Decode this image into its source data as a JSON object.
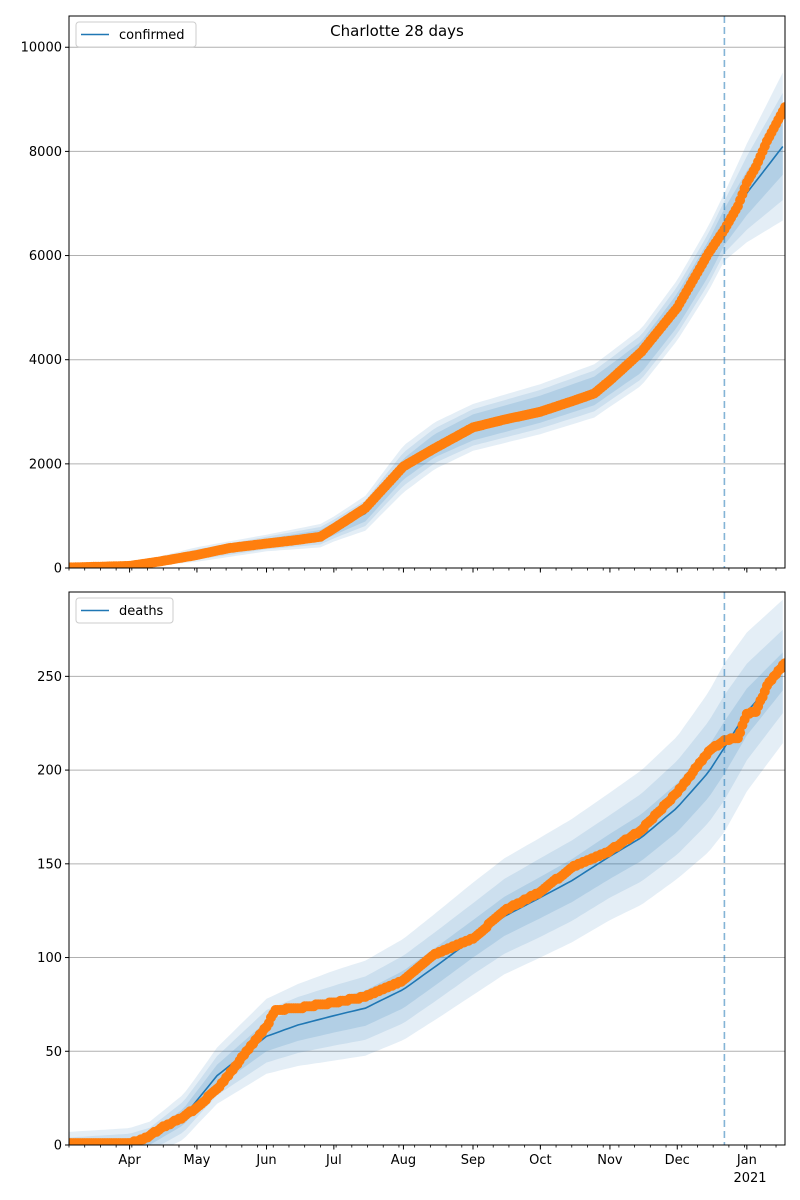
{
  "figure": {
    "title": "Charlotte 28 days"
  },
  "x_axis": {
    "month_ticks": [
      "Apr",
      "May",
      "Jun",
      "Jul",
      "Aug",
      "Sep",
      "Oct",
      "Nov",
      "Dec",
      "Jan"
    ],
    "year_label": "2021"
  },
  "chart_data": [
    {
      "type": "line",
      "legend": {
        "label": "confirmed",
        "placement": "upper-left"
      },
      "grid": "horizontal",
      "xlim": [
        "2020-03-05",
        "2021-01-18"
      ],
      "ylim": [
        0,
        10600
      ],
      "yticks": [
        0,
        2000,
        4000,
        6000,
        8000,
        10000
      ],
      "forecast_start": "2020-12-22",
      "colors": {
        "model": "#1f77b4",
        "observed": "#ff7f0e",
        "band": "#1f77b4",
        "forecast_line": "#1f77b4"
      },
      "model_line": {
        "x": [
          "2020-03-05",
          "2020-04-01",
          "2020-05-01",
          "2020-06-01",
          "2020-06-25",
          "2020-07-15",
          "2020-08-01",
          "2020-08-15",
          "2020-09-01",
          "2020-10-01",
          "2020-10-25",
          "2020-11-15",
          "2020-12-01",
          "2020-12-15",
          "2020-12-22",
          "2021-01-01",
          "2021-01-18"
        ],
        "values": [
          0,
          40,
          260,
          480,
          620,
          1050,
          1900,
          2350,
          2700,
          3050,
          3400,
          4050,
          4950,
          5950,
          6550,
          7200,
          8150
        ]
      },
      "band_half_widths": {
        "x": [
          "2020-03-05",
          "2020-04-01",
          "2020-05-01",
          "2020-06-01",
          "2020-07-01",
          "2020-08-01",
          "2020-09-01",
          "2020-10-01",
          "2020-11-01",
          "2020-12-01",
          "2020-12-22",
          "2021-01-18"
        ],
        "inner": [
          0,
          20,
          60,
          80,
          120,
          200,
          250,
          260,
          280,
          320,
          350,
          550
        ],
        "middle": [
          0,
          30,
          100,
          120,
          180,
          320,
          350,
          370,
          400,
          450,
          500,
          1050
        ],
        "outer": [
          0,
          40,
          140,
          160,
          240,
          450,
          450,
          480,
          520,
          580,
          650,
          1450
        ]
      },
      "observed": {
        "x": [
          "2020-03-05",
          "2020-04-01",
          "2020-04-15",
          "2020-05-01",
          "2020-05-15",
          "2020-06-01",
          "2020-06-15",
          "2020-06-25",
          "2020-07-01",
          "2020-07-15",
          "2020-08-01",
          "2020-08-15",
          "2020-09-01",
          "2020-09-15",
          "2020-10-01",
          "2020-10-15",
          "2020-10-25",
          "2020-11-01",
          "2020-11-15",
          "2020-12-01",
          "2020-12-15",
          "2020-12-22",
          "2020-12-28",
          "2021-01-01",
          "2021-01-05",
          "2021-01-10",
          "2021-01-18"
        ],
        "values": [
          10,
          40,
          130,
          250,
          380,
          470,
          540,
          600,
          760,
          1150,
          1950,
          2300,
          2700,
          2850,
          3000,
          3200,
          3350,
          3600,
          4150,
          5000,
          6050,
          6500,
          6950,
          7400,
          7700,
          8200,
          8850
        ]
      }
    },
    {
      "type": "line",
      "legend": {
        "label": "deaths",
        "placement": "upper-left"
      },
      "grid": "horizontal",
      "xlim": [
        "2020-03-05",
        "2021-01-18"
      ],
      "ylim": [
        0,
        295
      ],
      "yticks": [
        0,
        50,
        100,
        150,
        200,
        250
      ],
      "forecast_start": "2020-12-22",
      "colors": {
        "model": "#1f77b4",
        "observed": "#ff7f0e",
        "band": "#1f77b4",
        "forecast_line": "#1f77b4"
      },
      "model_line": {
        "x": [
          "2020-03-05",
          "2020-04-01",
          "2020-04-10",
          "2020-04-25",
          "2020-05-10",
          "2020-06-01",
          "2020-06-15",
          "2020-07-01",
          "2020-07-15",
          "2020-08-01",
          "2020-08-15",
          "2020-09-01",
          "2020-09-15",
          "2020-10-01",
          "2020-10-15",
          "2020-11-01",
          "2020-11-15",
          "2020-12-01",
          "2020-12-15",
          "2020-12-22",
          "2021-01-01",
          "2021-01-18"
        ],
        "values": [
          0,
          1,
          3,
          15,
          37,
          58,
          64,
          69,
          73,
          83,
          95,
          110,
          122,
          132,
          141,
          154,
          164,
          180,
          199,
          212,
          231,
          254
        ]
      },
      "band_half_widths": {
        "x": [
          "2020-03-05",
          "2020-04-01",
          "2020-05-01",
          "2020-06-01",
          "2020-07-01",
          "2020-08-01",
          "2020-09-01",
          "2020-10-01",
          "2020-11-01",
          "2020-12-01",
          "2020-12-22",
          "2021-01-18"
        ],
        "inner": [
          2,
          2,
          5,
          8,
          9,
          10,
          10,
          11,
          12,
          13,
          14,
          10
        ],
        "middle": [
          4,
          5,
          9,
          14,
          16,
          18,
          19,
          21,
          22,
          25,
          28,
          22
        ],
        "outer": [
          7,
          8,
          13,
          20,
          24,
          27,
          30,
          32,
          34,
          38,
          45,
          38
        ]
      },
      "observed": {
        "x": [
          "2020-03-05",
          "2020-04-01",
          "2020-04-05",
          "2020-04-10",
          "2020-04-15",
          "2020-04-20",
          "2020-04-25",
          "2020-05-01",
          "2020-05-10",
          "2020-05-15",
          "2020-05-20",
          "2020-06-01",
          "2020-06-05",
          "2020-06-15",
          "2020-07-01",
          "2020-07-15",
          "2020-08-01",
          "2020-08-15",
          "2020-09-01",
          "2020-09-15",
          "2020-10-01",
          "2020-10-15",
          "2020-11-01",
          "2020-11-15",
          "2020-12-01",
          "2020-12-15",
          "2020-12-22",
          "2020-12-28",
          "2021-01-01",
          "2021-01-05",
          "2021-01-10",
          "2021-01-18"
        ],
        "values": [
          1,
          1,
          2,
          5,
          9,
          12,
          15,
          20,
          30,
          37,
          45,
          63,
          72,
          73,
          76,
          79,
          88,
          102,
          110,
          125,
          135,
          148,
          157,
          168,
          188,
          210,
          216,
          217,
          230,
          231,
          245,
          257
        ]
      }
    }
  ]
}
